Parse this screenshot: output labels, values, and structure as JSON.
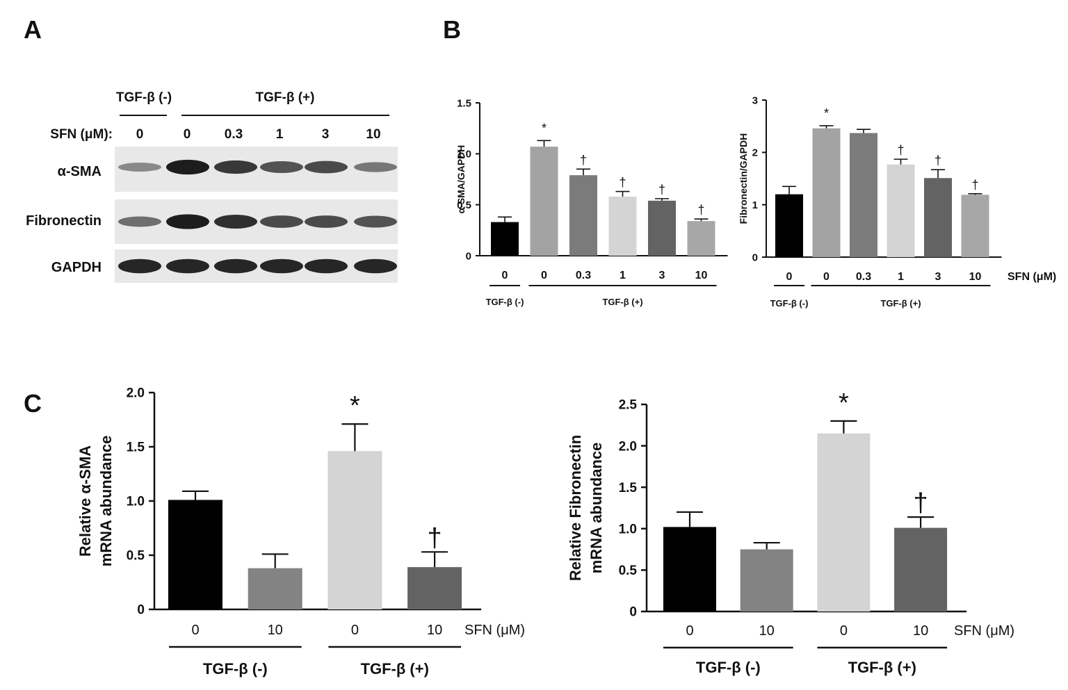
{
  "panels": {
    "a": "A",
    "b": "B",
    "c": "C"
  },
  "blot": {
    "group_neg": "TGF-β (-)",
    "group_pos": "TGF-β (+)",
    "sfn_label": "SFN (μM):",
    "lanes": [
      "0",
      "0",
      "0.3",
      "1",
      "3",
      "10"
    ],
    "proteins": [
      "α-SMA",
      "Fibronectin",
      "GAPDH"
    ],
    "band_intensity": {
      "α-SMA": [
        0.35,
        0.95,
        0.8,
        0.65,
        0.7,
        0.45
      ],
      "Fibronectin": [
        0.5,
        0.95,
        0.85,
        0.7,
        0.7,
        0.65
      ],
      "GAPDH": [
        0.9,
        0.9,
        0.9,
        0.9,
        0.9,
        0.9
      ]
    }
  },
  "chart_data": [
    {
      "id": "b-left",
      "type": "bar",
      "categories": [
        "0",
        "0",
        "0.3",
        "1",
        "3",
        "10"
      ],
      "values": [
        0.33,
        1.07,
        0.79,
        0.58,
        0.54,
        0.34
      ],
      "errors": [
        0.05,
        0.06,
        0.06,
        0.05,
        0.02,
        0.02
      ],
      "colors": [
        "#000000",
        "#a3a3a3",
        "#7b7b7b",
        "#d4d4d4",
        "#636363",
        "#a7a7a7"
      ],
      "annotations": [
        "",
        "*",
        "†",
        "†",
        "†",
        "†"
      ],
      "ylabel": "α-SMA/GAPDH",
      "ylim": [
        0,
        1.5
      ],
      "yticks": [
        "0",
        "0.5",
        "1.0",
        "1.5"
      ],
      "ytick_values": [
        0,
        0.5,
        1.0,
        1.5
      ],
      "groups": [
        {
          "label": "TGF-β (-)",
          "from": 0,
          "to": 0
        },
        {
          "label": "TGF-β (+)",
          "from": 1,
          "to": 5
        }
      ],
      "unit_label": ""
    },
    {
      "id": "b-right",
      "type": "bar",
      "categories": [
        "0",
        "0",
        "0.3",
        "1",
        "3",
        "10"
      ],
      "values": [
        1.2,
        2.46,
        2.37,
        1.77,
        1.51,
        1.19
      ],
      "errors": [
        0.15,
        0.05,
        0.07,
        0.1,
        0.16,
        0.02
      ],
      "colors": [
        "#000000",
        "#a3a3a3",
        "#7b7b7b",
        "#d4d4d4",
        "#636363",
        "#a7a7a7"
      ],
      "annotations": [
        "",
        "*",
        "",
        "†",
        "†",
        "†"
      ],
      "ylabel": "Fibronectin/GAPDH",
      "ylim": [
        0,
        3
      ],
      "yticks": [
        "0",
        "1",
        "2",
        "3"
      ],
      "ytick_values": [
        0,
        1,
        2,
        3
      ],
      "groups": [
        {
          "label": "TGF-β (-)",
          "from": 0,
          "to": 0
        },
        {
          "label": "TGF-β (+)",
          "from": 1,
          "to": 5
        }
      ],
      "unit_label": "SFN (μM)"
    },
    {
      "id": "c-left",
      "type": "bar",
      "categories": [
        "0",
        "10",
        "0",
        "10"
      ],
      "values": [
        1.01,
        0.38,
        1.46,
        0.39
      ],
      "errors": [
        0.08,
        0.13,
        0.25,
        0.14
      ],
      "colors": [
        "#000000",
        "#838383",
        "#d4d4d4",
        "#636363"
      ],
      "annotations": [
        "",
        "",
        "*",
        "†"
      ],
      "ylabel": [
        "Relative α-SMA",
        "mRNA abundance"
      ],
      "ylim": [
        0,
        2.0
      ],
      "yticks": [
        "0",
        "0.5",
        "1.0",
        "1.5",
        "2.0"
      ],
      "ytick_values": [
        0,
        0.5,
        1.0,
        1.5,
        2.0
      ],
      "groups": [
        {
          "label": "TGF-β (-)",
          "from": 0,
          "to": 1
        },
        {
          "label": "TGF-β (+)",
          "from": 2,
          "to": 3
        }
      ],
      "unit_label": "SFN (μM)"
    },
    {
      "id": "c-right",
      "type": "bar",
      "categories": [
        "0",
        "10",
        "0",
        "10"
      ],
      "values": [
        1.02,
        0.75,
        2.15,
        1.01
      ],
      "errors": [
        0.18,
        0.08,
        0.15,
        0.13
      ],
      "colors": [
        "#000000",
        "#838383",
        "#d4d4d4",
        "#636363"
      ],
      "annotations": [
        "",
        "",
        "*",
        "†"
      ],
      "ylabel": [
        "Relative Fibronectin",
        "mRNA abundance"
      ],
      "ylim": [
        0,
        2.5
      ],
      "yticks": [
        "0",
        "0.5",
        "1.0",
        "1.5",
        "2.0",
        "2.5"
      ],
      "ytick_values": [
        0,
        0.5,
        1.0,
        1.5,
        2.0,
        2.5
      ],
      "groups": [
        {
          "label": "TGF-β (-)",
          "from": 0,
          "to": 1
        },
        {
          "label": "TGF-β (+)",
          "from": 2,
          "to": 3
        }
      ],
      "unit_label": "SFN (μM)"
    }
  ]
}
